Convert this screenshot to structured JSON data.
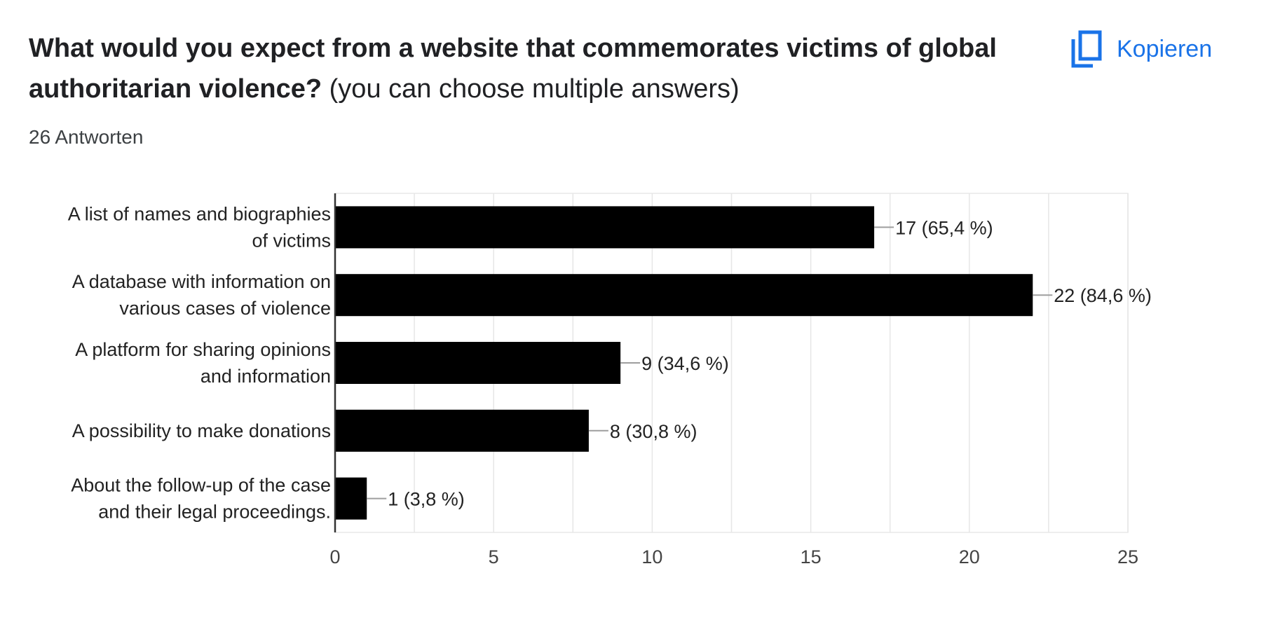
{
  "header": {
    "question_bold": "What would you expect from a website that commemorates victims of global authoritarian violence?",
    "question_note": "(you can choose multiple answers)",
    "answer_count": "26 Antworten",
    "copy_label": "Kopieren",
    "copy_icon": "copy-icon",
    "accent_color": "#1a73e8"
  },
  "chart_data": {
    "type": "bar",
    "orientation": "horizontal",
    "categories": [
      [
        "A list of names and biographies",
        "of victims"
      ],
      [
        "A database with information on",
        "various cases of violence"
      ],
      [
        "A platform for sharing opinions",
        "and information"
      ],
      [
        "A possibility to make donations"
      ],
      [
        "About the follow-up of the case",
        "and their legal proceedings."
      ]
    ],
    "values": [
      17,
      22,
      9,
      8,
      1
    ],
    "data_labels": [
      "17 (65,4 %)",
      "22 (84,6 %)",
      "9 (34,6 %)",
      "8 (30,8 %)",
      "1 (3,8 %)"
    ],
    "x_ticks": [
      0,
      5,
      10,
      15,
      20,
      25
    ],
    "xlim": [
      0,
      25
    ],
    "grid": true,
    "bar_color": "#000000"
  }
}
